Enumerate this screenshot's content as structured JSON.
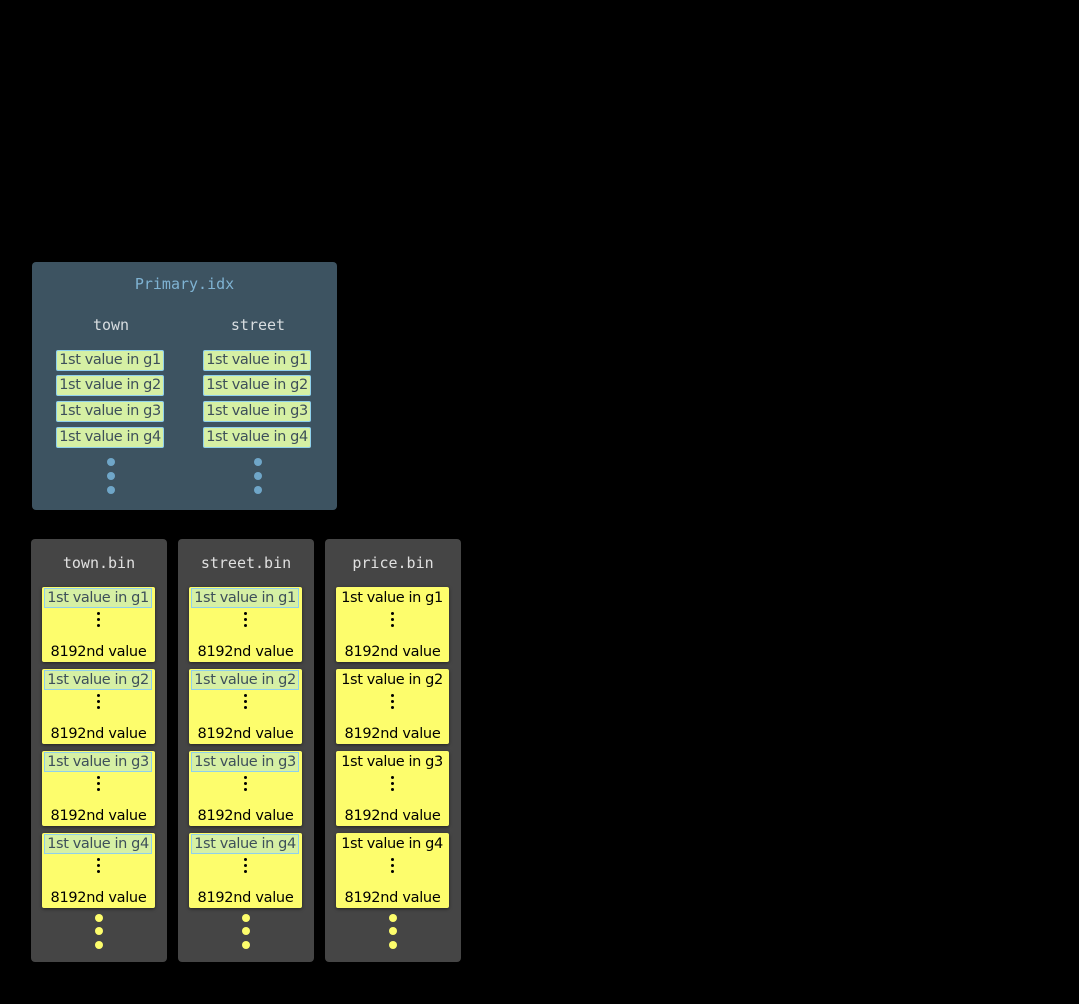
{
  "primary_index": {
    "title": "Primary.idx",
    "columns": [
      {
        "header": "town",
        "entries": [
          "1st value in g1",
          "1st value in g2",
          "1st value in g3",
          "1st value in g4"
        ]
      },
      {
        "header": "street",
        "entries": [
          "1st value in g1",
          "1st value in g2",
          "1st value in g3",
          "1st value in g4"
        ]
      }
    ]
  },
  "bin_files": [
    {
      "title": "town.bin",
      "in_primary_key": true,
      "granules": [
        {
          "first": "1st value in g1",
          "last": "8192nd value"
        },
        {
          "first": "1st value in g2",
          "last": "8192nd value"
        },
        {
          "first": "1st value in g3",
          "last": "8192nd value"
        },
        {
          "first": "1st value in g4",
          "last": "8192nd value"
        }
      ]
    },
    {
      "title": "street.bin",
      "in_primary_key": true,
      "granules": [
        {
          "first": "1st value in g1",
          "last": "8192nd value"
        },
        {
          "first": "1st value in g2",
          "last": "8192nd value"
        },
        {
          "first": "1st value in g3",
          "last": "8192nd value"
        },
        {
          "first": "1st value in g4",
          "last": "8192nd value"
        }
      ]
    },
    {
      "title": "price.bin",
      "in_primary_key": false,
      "granules": [
        {
          "first": "1st value in g1",
          "last": "8192nd value"
        },
        {
          "first": "1st value in g2",
          "last": "8192nd value"
        },
        {
          "first": "1st value in g3",
          "last": "8192nd value"
        },
        {
          "first": "1st value in g4",
          "last": "8192nd value"
        }
      ]
    }
  ],
  "colors": {
    "primary_panel": "#3d5361",
    "bin_panel": "#454545",
    "granule": "#fdfd6c",
    "index_entry": "#d6f0a4",
    "index_entry_border": "#8fd0ec",
    "primary_dots": "#6fa6c8",
    "bin_dots": "#fdfd6c"
  }
}
